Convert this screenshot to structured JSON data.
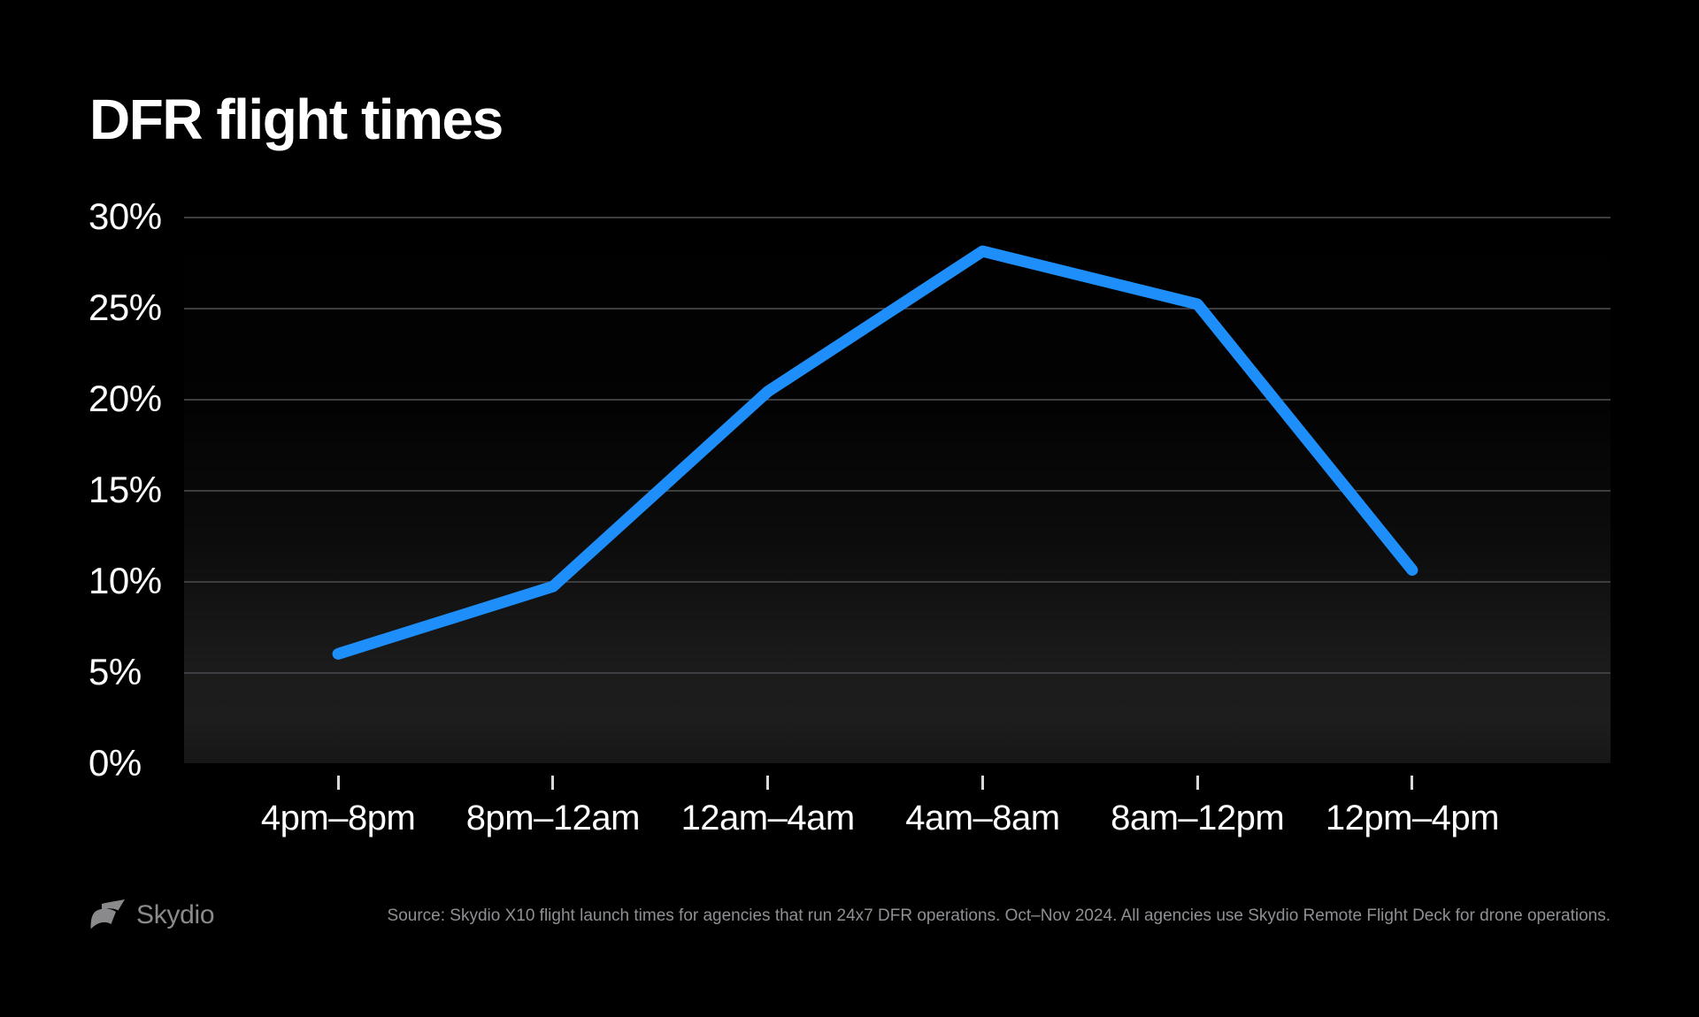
{
  "title": "DFR flight times",
  "footer": {
    "brand": "Skydio",
    "source": "Source: Skydio X10 flight launch times for agencies that run 24x7 DFR operations. Oct–Nov 2024. All agencies use Skydio Remote Flight Deck for drone operations."
  },
  "colors": {
    "background": "#000000",
    "line": "#1e8ffa",
    "grid": "#3d3e42",
    "tick": "#d9d9d9",
    "text": "#ffffff",
    "muted": "#8e9093",
    "brand": "#8a8a8d"
  },
  "icons": {
    "brand_logo": "skydio-flag-mark"
  },
  "chart_data": {
    "type": "line",
    "title": "DFR flight times",
    "categories": [
      "4pm–8pm",
      "8pm–12am",
      "12am–4am",
      "4am–8am",
      "8am–12pm",
      "12pm–4pm"
    ],
    "values": [
      6,
      9.7,
      20.4,
      28.1,
      25.2,
      10.6
    ],
    "y_ticks": [
      "30%",
      "25%",
      "20%",
      "15%",
      "10%",
      "5%",
      "0%"
    ],
    "ylim": [
      0,
      30
    ],
    "xlabel": "",
    "ylabel": "",
    "grid": "horizontal",
    "legend": false
  }
}
